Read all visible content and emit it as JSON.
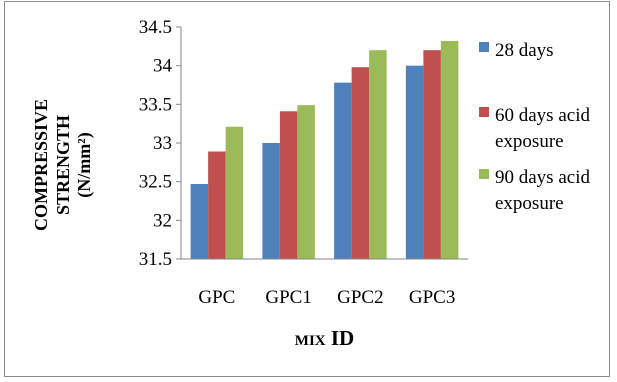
{
  "chart_data": {
    "type": "bar",
    "categories": [
      "GPC",
      "GPC1",
      "GPC2",
      "GPC3"
    ],
    "series": [
      {
        "name": "28 days",
        "color": "#4F81BD",
        "values": [
          32.47,
          33.0,
          33.78,
          34.0
        ]
      },
      {
        "name": "60 days acid exposure",
        "name_lines": [
          "60 days acid",
          "exposure"
        ],
        "color": "#C0504D",
        "values": [
          32.89,
          33.41,
          33.98,
          34.2
        ]
      },
      {
        "name": "90 days acid exposure",
        "name_lines": [
          "90 days acid",
          "exposure"
        ],
        "color": "#9BBB59",
        "values": [
          33.21,
          33.49,
          34.2,
          34.32
        ]
      }
    ],
    "ylim": [
      31.5,
      34.5
    ],
    "yticks": [
      31.5,
      32,
      32.5,
      33,
      33.5,
      34,
      34.5
    ],
    "ytick_labels": [
      "31.5",
      "32",
      "32.5",
      "33",
      "33.5",
      "34",
      "34.5"
    ],
    "ylabel_lines": [
      "COMPRESSIVE",
      "STRENGTH",
      "(N/mm²)"
    ],
    "xlabel": "MIX ID",
    "grid": false,
    "legend_position": "right"
  }
}
